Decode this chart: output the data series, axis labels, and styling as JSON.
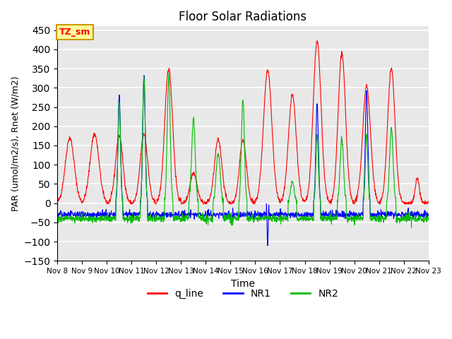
{
  "title": "Floor Solar Radiations",
  "xlabel": "Time",
  "ylabel": "PAR (umol/m2/s), Rnet (W/m2)",
  "ylim": [
    -150,
    460
  ],
  "yticks": [
    -150,
    -100,
    -50,
    0,
    50,
    100,
    150,
    200,
    250,
    300,
    350,
    400,
    450
  ],
  "xtick_labels": [
    "Nov 8",
    "Nov 9",
    "Nov 10",
    "Nov 11",
    "Nov 12",
    "Nov 13",
    "Nov 14",
    "Nov 15",
    "Nov 16",
    "Nov 17",
    "Nov 18",
    "Nov 19",
    "Nov 20",
    "Nov 21",
    "Nov 22",
    "Nov 23"
  ],
  "legend_labels": [
    "q_line",
    "NR1",
    "NR2"
  ],
  "line_colors": [
    "#ff0000",
    "#0000ff",
    "#00bb00"
  ],
  "annotation_text": "TZ_sm",
  "annotation_box_color": "#ffff99",
  "annotation_box_edge": "#cc9900",
  "plot_bg_color": "#e8e8e8",
  "grid_color": "#ffffff",
  "n_points": 1440,
  "days": 15
}
